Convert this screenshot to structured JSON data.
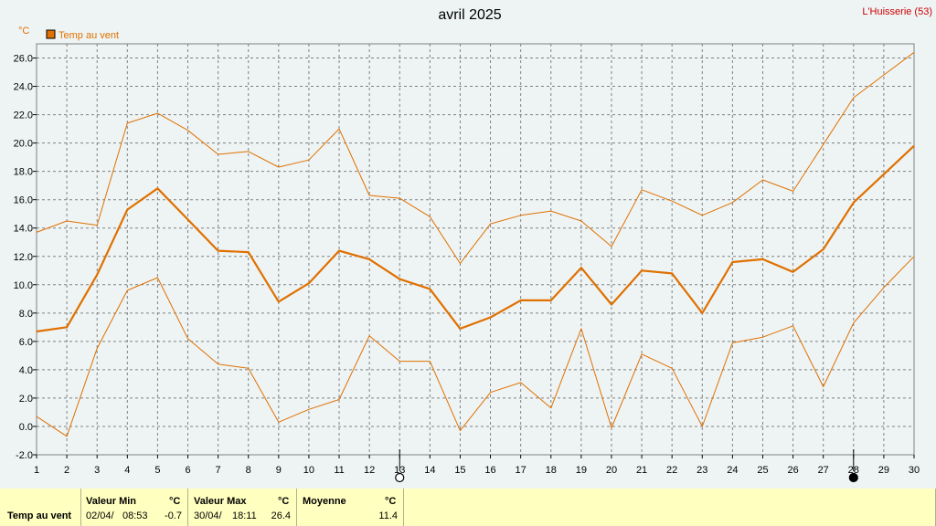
{
  "header": {
    "title": "avril 2025",
    "station": "L'Huisserie (53)",
    "unit": "°C"
  },
  "legend": {
    "label": "Temp au vent",
    "color": "#e07000"
  },
  "chart_data": {
    "type": "line",
    "title": "avril 2025",
    "ylabel": "°C",
    "ylim": [
      -2.0,
      27.0
    ],
    "yticks": [
      "-2.0",
      "0.0",
      "2.0",
      "4.0",
      "6.0",
      "8.0",
      "10.0",
      "12.0",
      "14.0",
      "16.0",
      "18.0",
      "20.0",
      "22.0",
      "24.0",
      "26.0"
    ],
    "x": [
      1,
      2,
      3,
      4,
      5,
      6,
      7,
      8,
      9,
      10,
      11,
      12,
      13,
      14,
      15,
      16,
      17,
      18,
      19,
      20,
      21,
      22,
      23,
      24,
      25,
      26,
      27,
      28,
      29,
      30
    ],
    "grid": true,
    "moon_markers": [
      {
        "day": 13,
        "phase": "full"
      },
      {
        "day": 28,
        "phase": "new"
      }
    ],
    "series": [
      {
        "name": "Temp au vent",
        "role": "max",
        "values": [
          13.7,
          14.5,
          14.2,
          21.4,
          22.1,
          20.9,
          19.2,
          19.4,
          18.3,
          18.8,
          21.0,
          16.3,
          16.1,
          14.8,
          11.5,
          14.3,
          14.9,
          15.2,
          14.5,
          12.7,
          16.7,
          15.9,
          14.9,
          15.8,
          17.4,
          16.6,
          19.9,
          23.2,
          24.8,
          26.4
        ]
      },
      {
        "name": "Temp au vent",
        "role": "mean",
        "values": [
          6.7,
          7.0,
          10.7,
          15.3,
          16.8,
          14.6,
          12.4,
          12.3,
          8.8,
          10.1,
          12.4,
          11.8,
          10.4,
          9.7,
          6.9,
          7.7,
          8.9,
          8.9,
          11.2,
          8.6,
          11.0,
          10.8,
          8.0,
          11.6,
          11.8,
          10.9,
          12.5,
          15.8,
          17.8,
          19.8
        ]
      },
      {
        "name": "Temp au vent",
        "role": "min",
        "values": [
          0.7,
          -0.7,
          5.5,
          9.6,
          10.5,
          6.2,
          4.4,
          4.1,
          0.3,
          1.2,
          1.9,
          6.4,
          4.6,
          4.6,
          -0.3,
          2.4,
          3.1,
          1.3,
          6.9,
          -0.1,
          5.1,
          4.1,
          0.0,
          5.9,
          6.3,
          7.1,
          2.8,
          7.3,
          9.8,
          12.0
        ]
      }
    ]
  },
  "stats": {
    "row_label": "Temp au vent",
    "min_header": "Valeur Min",
    "min_unit": "°C",
    "min_date": "02/04/",
    "min_time": "08:53",
    "min_value": "-0.7",
    "max_header": "Valeur Max",
    "max_unit": "°C",
    "max_date": "30/04/",
    "max_time": "18:11",
    "max_value": "26.4",
    "mean_header": "Moyenne",
    "mean_unit": "°C",
    "mean_value": "11.4"
  }
}
